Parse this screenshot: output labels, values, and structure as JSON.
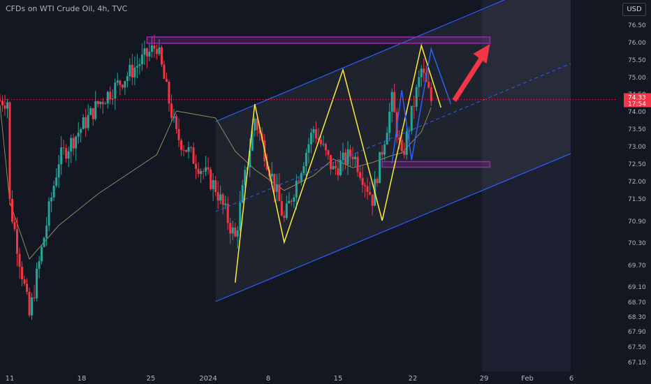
{
  "header": {
    "title": "CFDs on WTI Crude Oil, 4h, TVC",
    "currency": "USD"
  },
  "colors": {
    "background": "#131722",
    "up": "#26a69a",
    "down": "#f23645",
    "channel": "#2962ff",
    "zigzag": "#ffeb3b",
    "projection": "#2962ff",
    "zone": "#9c27b0",
    "arrow": "#f23645",
    "moving_average": "#8c8a5c",
    "price_label": "#f23645"
  },
  "chart_data": {
    "type": "candlestick",
    "x_ticks": [
      "11",
      "18",
      "25",
      "2024",
      "8",
      "15",
      "22",
      "29",
      "Feb",
      "6"
    ],
    "y_ticks": [
      "76.50",
      "76.00",
      "75.50",
      "75.00",
      "74.50",
      "74.00",
      "73.50",
      "73.00",
      "72.50",
      "72.00",
      "71.50",
      "70.90",
      "70.30",
      "69.70",
      "69.10",
      "68.70",
      "68.30",
      "67.90",
      "67.50",
      "67.10"
    ],
    "y_range": [
      67.0,
      77.0
    ],
    "last_price": "74.33",
    "countdown": "17:54",
    "price_action_keypoints": [
      {
        "x": "Dec 11",
        "price": 71.4
      },
      {
        "x": "Dec 13",
        "price": 68.3
      },
      {
        "x": "Dec 16",
        "price": 72.6
      },
      {
        "x": "Dec 20",
        "price": 74.2
      },
      {
        "x": "Dec 26",
        "price": 75.9
      },
      {
        "x": "Dec 28",
        "price": 73.3
      },
      {
        "x": "Jan 1",
        "price": 71.8
      },
      {
        "x": "Jan 3",
        "price": 70.4
      },
      {
        "x": "Jan 5",
        "price": 73.8
      },
      {
        "x": "Jan 8",
        "price": 70.9
      },
      {
        "x": "Jan 11",
        "price": 73.5
      },
      {
        "x": "Jan 13",
        "price": 72.3
      },
      {
        "x": "Jan 15",
        "price": 72.8
      },
      {
        "x": "Jan 17",
        "price": 71.5
      },
      {
        "x": "Jan 19",
        "price": 74.3
      },
      {
        "x": "Jan 20",
        "price": 72.6
      },
      {
        "x": "Jan 22",
        "price": 75.2
      },
      {
        "x": "Jan 23",
        "price": 74.3
      }
    ],
    "resistance_zone": [
      76.0,
      76.1
    ],
    "support_zone": [
      72.45,
      72.55
    ],
    "channel": {
      "upper_start": [
        73.7,
        "Jan 1"
      ],
      "lower_start": [
        68.7,
        "Jan 1"
      ]
    },
    "zigzag": [
      {
        "x": "Jan 3",
        "price": 69.2
      },
      {
        "x": "Jan 5",
        "price": 74.2
      },
      {
        "x": "Jan 8",
        "price": 70.3
      },
      {
        "x": "Jan 14",
        "price": 75.2
      },
      {
        "x": "Jan 18",
        "price": 70.9
      },
      {
        "x": "Jan 22",
        "price": 75.9
      },
      {
        "x": "Jan 24",
        "price": 74.1
      }
    ],
    "projection": [
      {
        "x": "Jan 19",
        "price": 72.5
      },
      {
        "x": "Jan 20",
        "price": 74.6
      },
      {
        "x": "Jan 21",
        "price": 72.6
      },
      {
        "x": "Jan 23",
        "price": 75.8
      },
      {
        "x": "Jan 25",
        "price": 74.2
      }
    ],
    "target_price": 75.9,
    "grid": false
  }
}
